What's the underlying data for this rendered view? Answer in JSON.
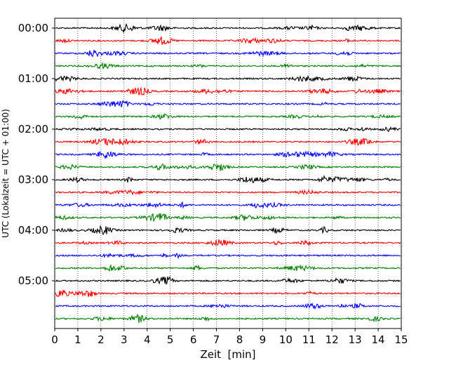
{
  "chart_data": {
    "type": "line",
    "title": "",
    "xlabel": "Zeit  [min]",
    "ylabel": "UTC (Lokalzeit = UTC + 01:00)",
    "xlim": [
      0,
      15
    ],
    "x_ticks": [
      "0",
      "1",
      "2",
      "3",
      "4",
      "5",
      "6",
      "7",
      "8",
      "9",
      "10",
      "11",
      "12",
      "13",
      "14",
      "15"
    ],
    "y_tick_labels": [
      "00:00",
      "01:00",
      "02:00",
      "03:00",
      "04:00",
      "05:00"
    ],
    "grid": "vertical dotted",
    "trace_colors": [
      "#000000",
      "#ff0000",
      "#0000ff",
      "#008000"
    ],
    "traces": [
      {
        "time": "00:00",
        "color": "#000000"
      },
      {
        "time": "00:15",
        "color": "#ff0000"
      },
      {
        "time": "00:30",
        "color": "#0000ff"
      },
      {
        "time": "00:45",
        "color": "#008000"
      },
      {
        "time": "01:00",
        "color": "#000000"
      },
      {
        "time": "01:15",
        "color": "#ff0000"
      },
      {
        "time": "01:30",
        "color": "#0000ff"
      },
      {
        "time": "01:45",
        "color": "#008000"
      },
      {
        "time": "02:00",
        "color": "#000000"
      },
      {
        "time": "02:15",
        "color": "#ff0000"
      },
      {
        "time": "02:30",
        "color": "#0000ff"
      },
      {
        "time": "02:45",
        "color": "#008000"
      },
      {
        "time": "03:00",
        "color": "#000000"
      },
      {
        "time": "03:15",
        "color": "#ff0000"
      },
      {
        "time": "03:30",
        "color": "#0000ff"
      },
      {
        "time": "03:45",
        "color": "#008000"
      },
      {
        "time": "04:00",
        "color": "#000000"
      },
      {
        "time": "04:15",
        "color": "#ff0000"
      },
      {
        "time": "04:30",
        "color": "#0000ff"
      },
      {
        "time": "04:45",
        "color": "#008000"
      },
      {
        "time": "05:00",
        "color": "#000000"
      },
      {
        "time": "05:15",
        "color": "#ff0000"
      },
      {
        "time": "05:30",
        "color": "#0000ff"
      },
      {
        "time": "05:45",
        "color": "#008000"
      }
    ]
  }
}
